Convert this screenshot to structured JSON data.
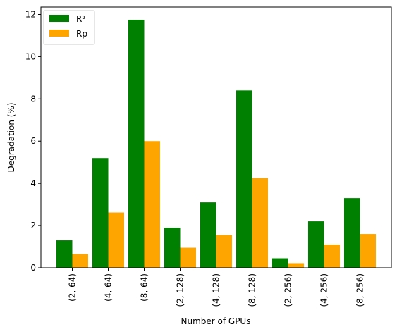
{
  "chart_data": {
    "type": "bar",
    "xlabel": "Number of GPUs",
    "ylabel": "Degradation (%)",
    "ylim": [
      0,
      12.35
    ],
    "yticks": [
      0,
      2,
      4,
      6,
      8,
      10,
      12
    ],
    "grid": false,
    "legend_position": "top-left",
    "categories": [
      "(2, 64)",
      "(4, 64)",
      "(8, 64)",
      "(2, 128)",
      "(4, 128)",
      "(8, 128)",
      "(2, 256)",
      "(4, 256)",
      "(8, 256)"
    ],
    "series": [
      {
        "name": "R²",
        "color": "#008000",
        "values": [
          1.3,
          5.2,
          11.75,
          1.9,
          3.1,
          8.4,
          0.45,
          2.2,
          3.3
        ]
      },
      {
        "name": "Rp",
        "color": "#ffa500",
        "values": [
          0.65,
          2.62,
          6.0,
          0.95,
          1.55,
          4.25,
          0.22,
          1.1,
          1.6
        ]
      }
    ]
  }
}
